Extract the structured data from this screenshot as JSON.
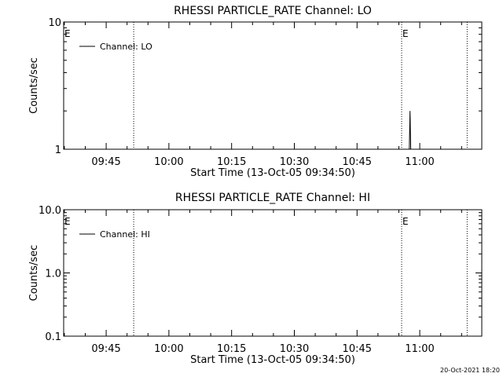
{
  "footer": {
    "timestamp": "20-Oct-2021 18:20"
  },
  "chart_data": [
    {
      "type": "line",
      "title": "RHESSI PARTICLE_RATE Channel: LO",
      "xlabel": "Start Time (13-Oct-05 09:34:50)",
      "ylabel": "Counts/sec",
      "yscale": "log",
      "ylim": [
        1,
        10
      ],
      "ytick_labels": [
        "1",
        "10"
      ],
      "ytick_values": [
        1,
        10
      ],
      "xlim": [
        "09:34:50",
        "11:14:50"
      ],
      "xtick_labels": [
        "09:45",
        "10:00",
        "10:15",
        "10:30",
        "10:45",
        "11:00"
      ],
      "grid": false,
      "legend_position": "top-left",
      "series": [
        {
          "name": "Channel: LO",
          "points": [
            [
              "10:57:30",
              1
            ],
            [
              "10:57:40",
              2
            ],
            [
              "10:57:50",
              1
            ]
          ]
        }
      ],
      "event_markers": [
        {
          "label": "E",
          "time": "09:34:50",
          "dotted": false
        },
        {
          "label": "",
          "time": "09:51:35",
          "dotted": true
        },
        {
          "label": "E",
          "time": "10:55:40",
          "dotted": true
        },
        {
          "label": "",
          "time": "11:11:20",
          "dotted": true
        }
      ]
    },
    {
      "type": "line",
      "title": "RHESSI PARTICLE_RATE Channel: HI",
      "xlabel": "Start Time (13-Oct-05 09:34:50)",
      "ylabel": "Counts/sec",
      "yscale": "log",
      "ylim": [
        0.1,
        10
      ],
      "ytick_labels": [
        "0.1",
        "1.0",
        "10.0"
      ],
      "ytick_values": [
        0.1,
        1,
        10
      ],
      "xlim": [
        "09:34:50",
        "11:14:50"
      ],
      "xtick_labels": [
        "09:45",
        "10:00",
        "10:15",
        "10:30",
        "10:45",
        "11:00"
      ],
      "grid": false,
      "legend_position": "top-left",
      "series": [
        {
          "name": "Channel: HI",
          "points": []
        }
      ],
      "event_markers": [
        {
          "label": "E",
          "time": "09:34:50",
          "dotted": false
        },
        {
          "label": "",
          "time": "09:51:35",
          "dotted": true
        },
        {
          "label": "E",
          "time": "10:55:40",
          "dotted": true
        },
        {
          "label": "",
          "time": "11:11:20",
          "dotted": true
        }
      ]
    }
  ]
}
